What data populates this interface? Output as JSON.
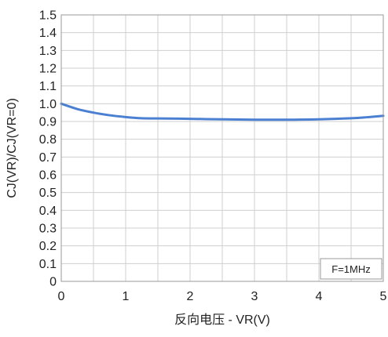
{
  "chart_data": {
    "type": "line",
    "title": "",
    "xlabel": "反向电压 - VR(V)",
    "ylabel": "CJ(VR)/CJ(VR=0)",
    "xlim": [
      0,
      5
    ],
    "ylim": [
      0,
      1.5
    ],
    "x_ticks": [
      0,
      1,
      2,
      3,
      4,
      5
    ],
    "x_tick_labels": [
      "0",
      "1",
      "2",
      "3",
      "4",
      "5"
    ],
    "y_ticks": [
      0,
      0.1,
      0.2,
      0.3,
      0.4,
      0.5,
      0.6,
      0.7,
      0.8,
      0.9,
      1.0,
      1.1,
      1.2,
      1.3,
      1.4,
      1.5
    ],
    "y_tick_labels": [
      "0",
      "0.1",
      "0.2",
      "0.3",
      "0.4",
      "0.5",
      "0.6",
      "0.7",
      "0.8",
      "0.9",
      "1.0",
      "1.1",
      "1.2",
      "1.3",
      "1.4",
      "1.5"
    ],
    "x_minor_step": 0.5,
    "grid": true,
    "legend": "none",
    "annotation": "F=1MHz",
    "series": [
      {
        "color": "#4a7fd1",
        "x": [
          0,
          0.25,
          0.5,
          0.75,
          1.0,
          1.25,
          1.5,
          2.0,
          2.5,
          3.0,
          3.5,
          4.0,
          4.5,
          4.75,
          5.0
        ],
        "y": [
          1.0,
          0.97,
          0.95,
          0.935,
          0.925,
          0.918,
          0.917,
          0.915,
          0.912,
          0.91,
          0.91,
          0.912,
          0.918,
          0.924,
          0.932
        ]
      }
    ]
  }
}
